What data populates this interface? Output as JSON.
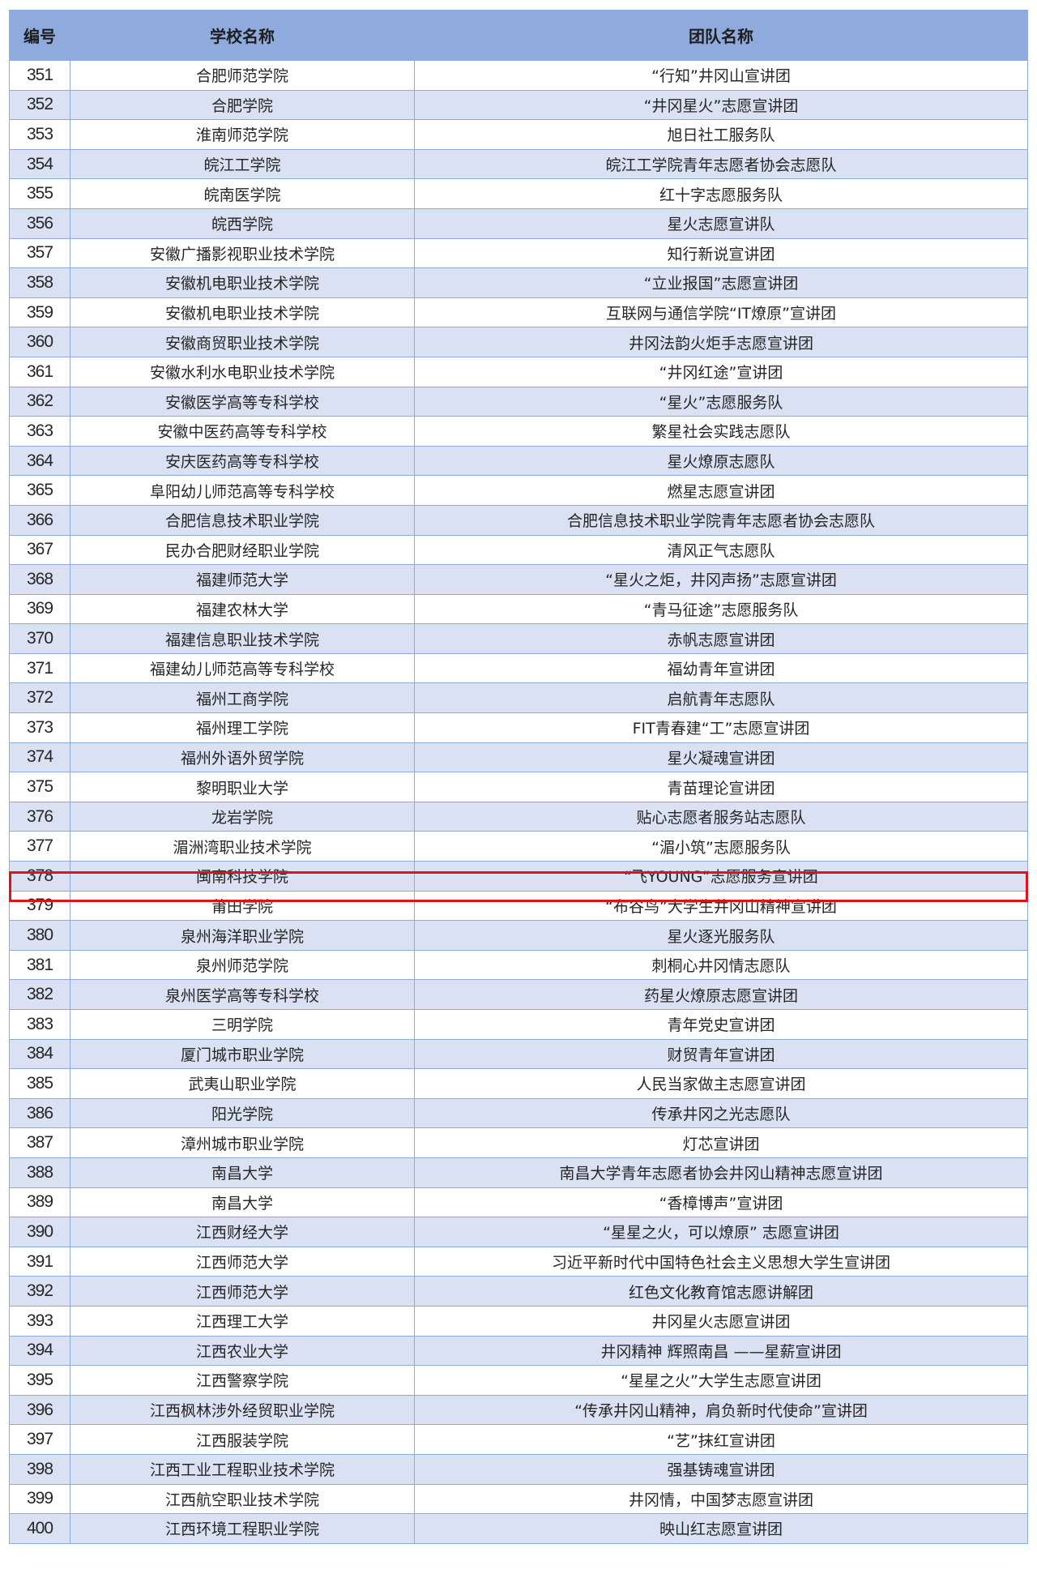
{
  "headers": [
    "编号",
    "学校名称",
    "团队名称"
  ],
  "highlight_color": "#e0121c",
  "highlighted_row": "378",
  "rows": [
    [
      "351",
      "合肥师范学院",
      "“行知”井冈山宣讲团"
    ],
    [
      "352",
      "合肥学院",
      "“井冈星火”志愿宣讲团"
    ],
    [
      "353",
      "淮南师范学院",
      "旭日社工服务队"
    ],
    [
      "354",
      "皖江工学院",
      "皖江工学院青年志愿者协会志愿队"
    ],
    [
      "355",
      "皖南医学院",
      "红十字志愿服务队"
    ],
    [
      "356",
      "皖西学院",
      "星火志愿宣讲队"
    ],
    [
      "357",
      "安徽广播影视职业技术学院",
      "知行新说宣讲团"
    ],
    [
      "358",
      "安徽机电职业技术学院",
      "“立业报国”志愿宣讲团"
    ],
    [
      "359",
      "安徽机电职业技术学院",
      "互联网与通信学院“IT燎原”宣讲团"
    ],
    [
      "360",
      "安徽商贸职业技术学院",
      "井冈法韵火炬手志愿宣讲团"
    ],
    [
      "361",
      "安徽水利水电职业技术学院",
      "“井冈红途”宣讲团"
    ],
    [
      "362",
      "安徽医学高等专科学校",
      "“星火”志愿服务队"
    ],
    [
      "363",
      "安徽中医药高等专科学校",
      "繁星社会实践志愿队"
    ],
    [
      "364",
      "安庆医药高等专科学校",
      "星火燎原志愿队"
    ],
    [
      "365",
      "阜阳幼儿师范高等专科学校",
      "燃星志愿宣讲团"
    ],
    [
      "366",
      "合肥信息技术职业学院",
      "合肥信息技术职业学院青年志愿者协会志愿队"
    ],
    [
      "367",
      "民办合肥财经职业学院",
      "清风正气志愿队"
    ],
    [
      "368",
      "福建师范大学",
      "“星火之炬，井冈声扬”志愿宣讲团"
    ],
    [
      "369",
      "福建农林大学",
      "“青马征途”志愿服务队"
    ],
    [
      "370",
      "福建信息职业技术学院",
      "赤帆志愿宣讲团"
    ],
    [
      "371",
      "福建幼儿师范高等专科学校",
      "福幼青年宣讲团"
    ],
    [
      "372",
      "福州工商学院",
      "启航青年志愿队"
    ],
    [
      "373",
      "福州理工学院",
      "FIT青春建“工”志愿宣讲团"
    ],
    [
      "374",
      "福州外语外贸学院",
      "星火凝魂宣讲团"
    ],
    [
      "375",
      "黎明职业大学",
      "青苗理论宣讲团"
    ],
    [
      "376",
      "龙岩学院",
      "贴心志愿者服务站志愿队"
    ],
    [
      "377",
      "湄洲湾职业技术学院",
      "“湄小筑”志愿服务队"
    ],
    [
      "378",
      "闽南科技学院",
      "“飞YOUNG”志愿服务宣讲团"
    ],
    [
      "379",
      "莆田学院",
      "“布谷鸟”大学生井冈山精神宣讲团"
    ],
    [
      "380",
      "泉州海洋职业学院",
      "星火逐光服务队"
    ],
    [
      "381",
      "泉州师范学院",
      "刺桐心井冈情志愿队"
    ],
    [
      "382",
      "泉州医学高等专科学校",
      "药星火燎原志愿宣讲团"
    ],
    [
      "383",
      "三明学院",
      "青年党史宣讲团"
    ],
    [
      "384",
      "厦门城市职业学院",
      "财贸青年宣讲团"
    ],
    [
      "385",
      "武夷山职业学院",
      "人民当家做主志愿宣讲团"
    ],
    [
      "386",
      "阳光学院",
      "传承井冈之光志愿队"
    ],
    [
      "387",
      "漳州城市职业学院",
      "灯芯宣讲团"
    ],
    [
      "388",
      "南昌大学",
      "南昌大学青年志愿者协会井冈山精神志愿宣讲团"
    ],
    [
      "389",
      "南昌大学",
      "“香樟博声”宣讲团"
    ],
    [
      "390",
      "江西财经大学",
      "“星星之火，可以燎原”  志愿宣讲团"
    ],
    [
      "391",
      "江西师范大学",
      "习近平新时代中国特色社会主义思想大学生宣讲团"
    ],
    [
      "392",
      "江西师范大学",
      "红色文化教育馆志愿讲解团"
    ],
    [
      "393",
      "江西理工大学",
      "井冈星火志愿宣讲团"
    ],
    [
      "394",
      "江西农业大学",
      "井冈精神 辉照南昌 ——星薪宣讲团"
    ],
    [
      "395",
      "江西警察学院",
      "“星星之火”大学生志愿宣讲团"
    ],
    [
      "396",
      "江西枫林涉外经贸职业学院",
      "“传承井冈山精神，肩负新时代使命”宣讲团"
    ],
    [
      "397",
      "江西服装学院",
      "“艺”抹红宣讲团"
    ],
    [
      "398",
      "江西工业工程职业技术学院",
      "强基铸魂宣讲团"
    ],
    [
      "399",
      "江西航空职业技术学院",
      "井冈情，中国梦志愿宣讲团"
    ],
    [
      "400",
      "江西环境工程职业学院",
      "映山红志愿宣讲团"
    ]
  ]
}
